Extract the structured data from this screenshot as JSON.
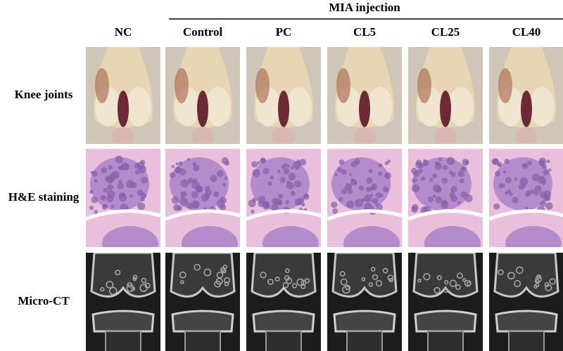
{
  "header": {
    "group_label": "MIA injection"
  },
  "columns": [
    "NC",
    "Control",
    "PC",
    "CL5",
    "CL25",
    "CL40"
  ],
  "rows": [
    "Knee joints",
    "H&E staining",
    "Micro-CT"
  ]
}
